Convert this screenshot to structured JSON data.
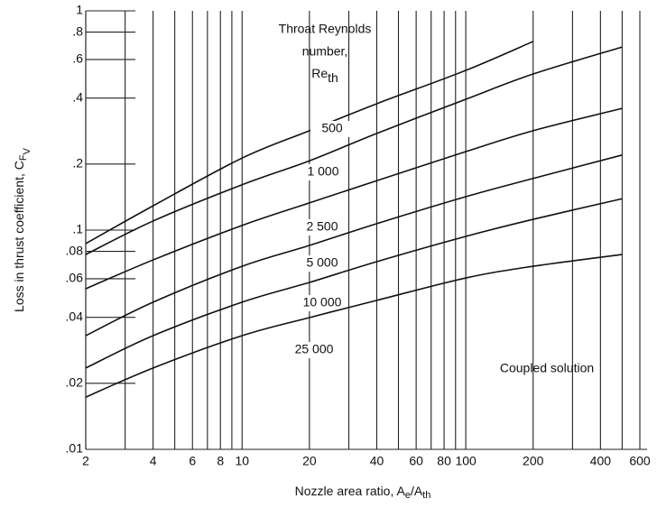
{
  "chart_data": {
    "type": "line",
    "xlabel": [
      "Nozzle area ratio, A",
      "e",
      "/A",
      "th"
    ],
    "ylabel": [
      "Loss in thrust coefficient, C",
      "F",
      "V"
    ],
    "annotation_title": [
      "Throat Reynolds",
      "number,",
      "Re",
      "th"
    ],
    "annotation": "Coupled solution",
    "x_log": true,
    "y_log": true,
    "xlim": [
      2,
      600
    ],
    "ylim": [
      0.01,
      1
    ],
    "xticks": [
      2,
      4,
      6,
      8,
      10,
      20,
      40,
      60,
      80,
      100,
      200,
      400,
      600
    ],
    "xticks_minor": [
      3,
      5,
      7,
      9,
      30,
      50,
      70,
      90,
      300,
      500
    ],
    "yticks": [
      1,
      {
        "value": 0.8,
        "label": ".8"
      },
      {
        "value": 0.6,
        "label": ".6"
      },
      {
        "value": 0.4,
        "label": ".4"
      },
      {
        "value": 0.2,
        "label": ".2"
      },
      {
        "value": 0.1,
        "label": ".1"
      },
      {
        "value": 0.08,
        "label": ".08"
      },
      {
        "value": 0.06,
        "label": ".06"
      },
      {
        "value": 0.04,
        "label": ".04"
      },
      {
        "value": 0.02,
        "label": ".02"
      },
      {
        "value": 0.01,
        "label": ".01"
      }
    ],
    "color": "#111111",
    "x": [
      2,
      4,
      10,
      20,
      40,
      100,
      200,
      500
    ],
    "series": [
      {
        "name": "500",
        "color": "#111111",
        "values": [
          0.0868,
          0.129,
          0.213,
          0.284,
          0.377,
          0.535,
          0.725,
          null
        ]
      },
      {
        "name": "1 000",
        "color": "#111111",
        "values": [
          0.0774,
          0.11,
          0.161,
          0.207,
          0.276,
          0.395,
          0.515,
          0.684
        ]
      },
      {
        "name": "2 500",
        "color": "#111111",
        "values": [
          0.054,
          0.0731,
          0.105,
          0.133,
          0.168,
          0.228,
          0.284,
          0.359
        ]
      },
      {
        "name": "5 000",
        "color": "#111111",
        "values": [
          0.033,
          0.0469,
          0.0684,
          0.0851,
          0.107,
          0.142,
          0.172,
          0.22
        ]
      },
      {
        "name": "10 000",
        "color": "#111111",
        "values": [
          0.0235,
          0.033,
          0.0469,
          0.0577,
          0.0718,
          0.0936,
          0.112,
          0.139
        ]
      },
      {
        "name": "25 000",
        "color": "#111111",
        "values": [
          0.0173,
          0.0235,
          0.033,
          0.0399,
          0.0478,
          0.0605,
          0.0684,
          0.0774
        ]
      }
    ]
  }
}
